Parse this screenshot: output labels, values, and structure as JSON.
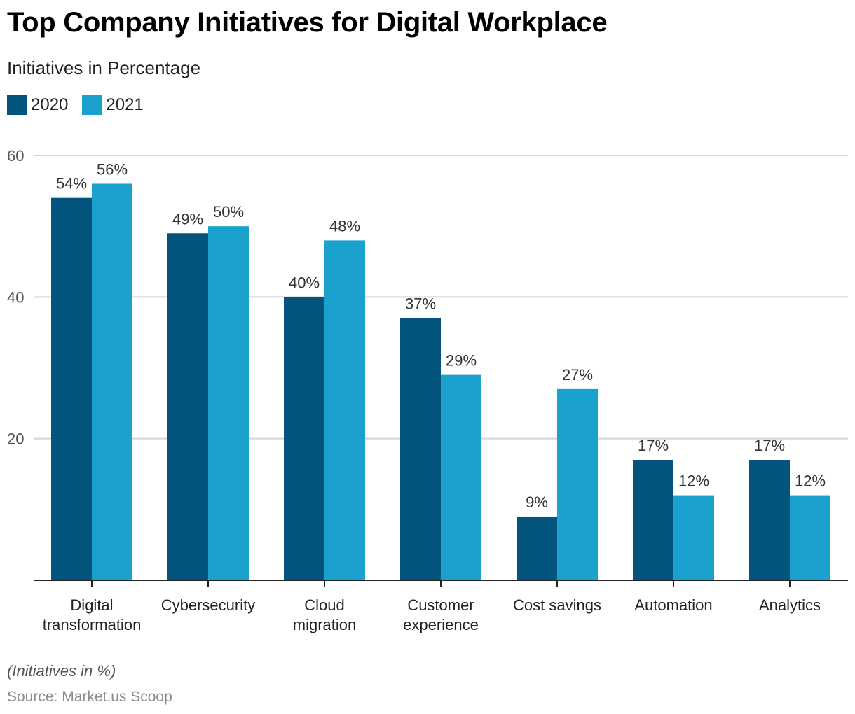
{
  "chart_data": {
    "type": "bar",
    "title": "Top Company Initiatives for Digital Workplace",
    "subtitle": "Initiatives in Percentage",
    "xlabel": "",
    "ylabel": "",
    "ylim": [
      0,
      60
    ],
    "yticks": [
      20,
      40,
      60
    ],
    "grid": true,
    "legend_position": "top-left",
    "categories": [
      [
        "Digital",
        "transformation"
      ],
      [
        "Cybersecurity"
      ],
      [
        "Cloud",
        "migration"
      ],
      [
        "Customer",
        "experience"
      ],
      [
        "Cost savings"
      ],
      [
        "Automation"
      ],
      [
        "Analytics"
      ]
    ],
    "series": [
      {
        "name": "2020",
        "color": "#02547c",
        "values": [
          54,
          49,
          40,
          37,
          9,
          17,
          17
        ]
      },
      {
        "name": "2021",
        "color": "#1aa1cd",
        "values": [
          56,
          50,
          48,
          29,
          27,
          12,
          12
        ]
      }
    ],
    "value_suffix": "%",
    "note": "(Initiatives in %)",
    "source": "Source: Market.us Scoop"
  }
}
